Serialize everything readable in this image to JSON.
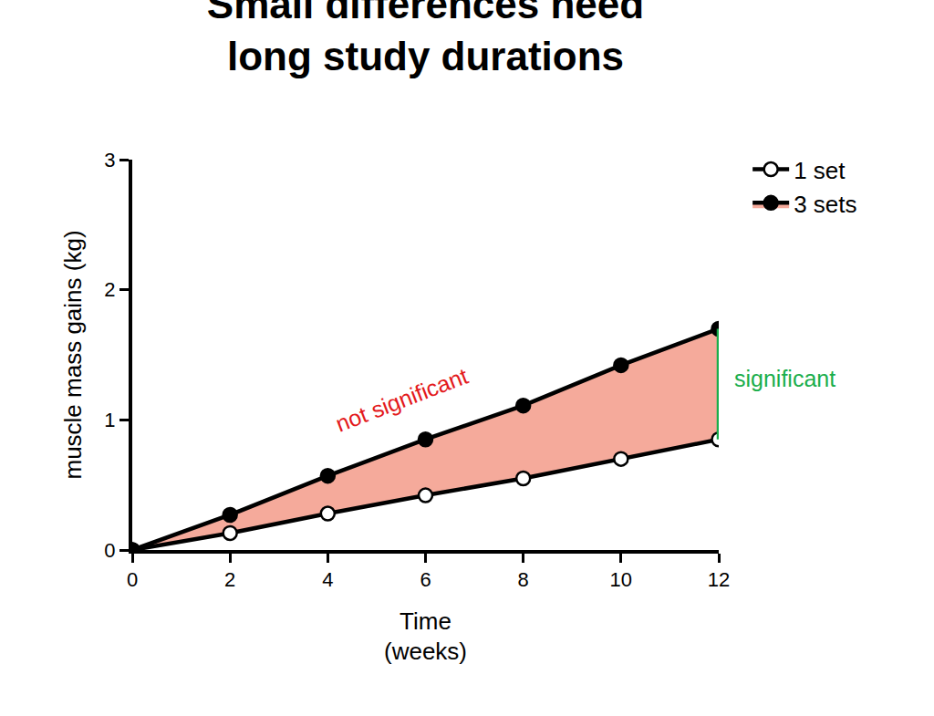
{
  "chart_data": {
    "type": "line",
    "title": "Small differences need long study durations",
    "x_label": "Time (weeks)",
    "y_label": "muscle mass gains (kg)",
    "x": [
      0,
      2,
      4,
      6,
      8,
      10,
      12
    ],
    "series": [
      {
        "name": "1 set",
        "color": "#000000",
        "marker": "circle-open",
        "line_style": "solid",
        "values": [
          0,
          0.13,
          0.28,
          0.42,
          0.55,
          0.7,
          0.85
        ]
      },
      {
        "name": "3 sets",
        "color": "#000000",
        "marker": "circle",
        "line_style": "solid",
        "values": [
          0,
          0.27,
          0.57,
          0.85,
          1.11,
          1.42,
          1.7
        ]
      }
    ],
    "xlim": [
      0,
      12
    ],
    "xticks": [
      0,
      2,
      4,
      6,
      8,
      10,
      12
    ],
    "ylim": [
      0,
      3
    ],
    "yticks": [
      0,
      1,
      2,
      3
    ],
    "grid": false,
    "legend": "top right",
    "annotations": [
      {
        "text": "not significant",
        "color": "#e3191c"
      },
      {
        "text": "significant",
        "color": "#1aae4c"
      }
    ]
  }
}
